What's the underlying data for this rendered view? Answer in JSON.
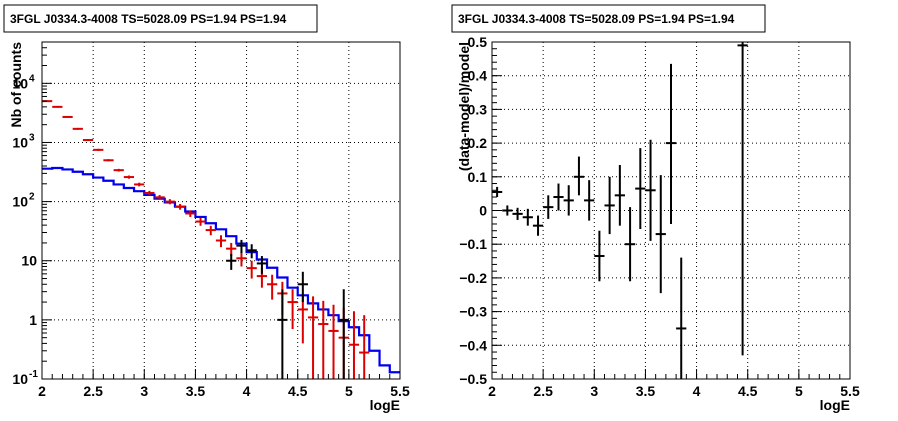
{
  "chart_data": [
    {
      "type": "line",
      "title": "3FGL J0334.3-4008 TS=5028.09 PS=1.94 PS=1.94",
      "xlabel": "logE",
      "ylabel": "Nb of counts",
      "xlim": [
        2,
        5.5
      ],
      "ylim": [
        0.1,
        50000
      ],
      "yscale": "log",
      "grid": true,
      "xticks": [
        "2",
        "2.5",
        "3",
        "3.5",
        "4",
        "4.5",
        "5",
        "5.5"
      ],
      "yticks": [
        {
          "v": 0.1,
          "label": "10",
          "sup": "-1"
        },
        {
          "v": 1,
          "label": "1",
          "sup": ""
        },
        {
          "v": 10,
          "label": "10",
          "sup": ""
        },
        {
          "v": 100,
          "label": "10",
          "sup": "2"
        },
        {
          "v": 1000,
          "label": "10",
          "sup": "3"
        },
        {
          "v": 10000,
          "label": "10",
          "sup": "4"
        }
      ],
      "series": [
        {
          "color": "#0000ee",
          "style": "step",
          "bins": [
            2.0,
            2.1,
            2.2,
            2.3,
            2.4,
            2.5,
            2.6,
            2.7,
            2.8,
            2.9,
            3.0,
            3.1,
            3.2,
            3.3,
            3.4,
            3.5,
            3.6,
            3.7,
            3.8,
            3.9,
            4.0,
            4.1,
            4.2,
            4.3,
            4.4,
            4.5,
            4.6,
            4.7,
            4.8,
            4.9,
            5.0,
            5.1,
            5.2,
            5.3,
            5.4,
            5.5
          ],
          "values": [
            360,
            370,
            350,
            320,
            290,
            255,
            225,
            195,
            170,
            150,
            130,
            112,
            97,
            82,
            68,
            55,
            43,
            34,
            26,
            19.5,
            14,
            10.5,
            7.6,
            5.2,
            3.5,
            2.6,
            1.9,
            1.5,
            1.2,
            0.95,
            0.75,
            0.55,
            0.3,
            0.17,
            0.13
          ]
        },
        {
          "color": "#dd0000",
          "style": "points",
          "points": [
            {
              "x": 2.05,
              "y": 5000,
              "lo": 4850,
              "hi": 5150
            },
            {
              "x": 2.15,
              "y": 4000,
              "lo": 3880,
              "hi": 4120
            },
            {
              "x": 2.25,
              "y": 2700,
              "lo": 2600,
              "hi": 2800
            },
            {
              "x": 2.35,
              "y": 1700,
              "lo": 1640,
              "hi": 1760
            },
            {
              "x": 2.45,
              "y": 1100,
              "lo": 1060,
              "hi": 1140
            },
            {
              "x": 2.55,
              "y": 750,
              "lo": 720,
              "hi": 780
            },
            {
              "x": 2.65,
              "y": 500,
              "lo": 478,
              "hi": 522
            },
            {
              "x": 2.75,
              "y": 340,
              "lo": 322,
              "hi": 358
            },
            {
              "x": 2.85,
              "y": 260,
              "lo": 244,
              "hi": 276
            },
            {
              "x": 2.95,
              "y": 195,
              "lo": 181,
              "hi": 209
            },
            {
              "x": 3.05,
              "y": 140,
              "lo": 128,
              "hi": 152
            },
            {
              "x": 3.15,
              "y": 118,
              "lo": 107,
              "hi": 129
            },
            {
              "x": 3.25,
              "y": 100,
              "lo": 90,
              "hi": 110
            },
            {
              "x": 3.35,
              "y": 82,
              "lo": 73,
              "hi": 91
            },
            {
              "x": 3.45,
              "y": 63,
              "lo": 55,
              "hi": 71
            },
            {
              "x": 3.55,
              "y": 46,
              "lo": 39,
              "hi": 53
            },
            {
              "x": 3.65,
              "y": 33,
              "lo": 27,
              "hi": 39
            },
            {
              "x": 3.75,
              "y": 22,
              "lo": 17,
              "hi": 27
            },
            {
              "x": 3.85,
              "y": 16,
              "lo": 12,
              "hi": 20
            },
            {
              "x": 3.95,
              "y": 11,
              "lo": 8,
              "hi": 14
            },
            {
              "x": 4.05,
              "y": 7.5,
              "lo": 5,
              "hi": 10
            },
            {
              "x": 4.15,
              "y": 5.5,
              "lo": 3.5,
              "hi": 7.5
            },
            {
              "x": 4.25,
              "y": 4.0,
              "lo": 2.2,
              "hi": 5.8
            },
            {
              "x": 4.35,
              "y": 2.8,
              "lo": 1.2,
              "hi": 4.4
            },
            {
              "x": 4.45,
              "y": 2.0,
              "lo": 0.7,
              "hi": 3.3
            },
            {
              "x": 4.55,
              "y": 1.5,
              "lo": 0.4,
              "hi": 2.8
            },
            {
              "x": 4.65,
              "y": 1.1,
              "lo": 0.1,
              "hi": 2.5
            },
            {
              "x": 4.75,
              "y": 0.85,
              "lo": 0.1,
              "hi": 2.1
            },
            {
              "x": 4.85,
              "y": 0.65,
              "lo": 0.1,
              "hi": 1.8
            },
            {
              "x": 4.95,
              "y": 0.5,
              "lo": 0.1,
              "hi": 1.6
            },
            {
              "x": 5.05,
              "y": 0.38,
              "lo": 0.1,
              "hi": 1.4
            },
            {
              "x": 5.15,
              "y": 0.28,
              "lo": 0.1,
              "hi": 1.2
            }
          ]
        },
        {
          "color": "#000000",
          "style": "points",
          "points": [
            {
              "x": 3.85,
              "y": 10,
              "lo": 7,
              "hi": 13
            },
            {
              "x": 3.95,
              "y": 18,
              "lo": 13.5,
              "hi": 22.5
            },
            {
              "x": 4.05,
              "y": 15,
              "lo": 11,
              "hi": 19
            },
            {
              "x": 4.15,
              "y": 9,
              "lo": 6,
              "hi": 12
            },
            {
              "x": 4.35,
              "y": 1,
              "lo": 0.1,
              "hi": 3.3
            },
            {
              "x": 4.55,
              "y": 4,
              "lo": 2,
              "hi": 6.5
            },
            {
              "x": 4.95,
              "y": 1,
              "lo": 0.1,
              "hi": 3.3
            }
          ]
        }
      ]
    },
    {
      "type": "scatter",
      "title": "3FGL J0334.3-4008 TS=5028.09 PS=1.94 PS=1.94",
      "xlabel": "logE",
      "ylabel": "(data-model)/model",
      "xlim": [
        2,
        5.5
      ],
      "ylim": [
        -0.5,
        0.5
      ],
      "grid": true,
      "xticks": [
        "2",
        "2.5",
        "3",
        "3.5",
        "4",
        "4.5",
        "5",
        "5.5"
      ],
      "yticks": [
        "−0.5",
        "−0.4",
        "−0.3",
        "−0.2",
        "−0.1",
        "0",
        "0.1",
        "0.2",
        "0.3",
        "0.4",
        "0.5"
      ],
      "series": [
        {
          "color": "#000000",
          "points": [
            {
              "x": 2.05,
              "y": 0.055,
              "lo": 0.04,
              "hi": 0.07
            },
            {
              "x": 2.15,
              "y": 0.0,
              "lo": -0.015,
              "hi": 0.015
            },
            {
              "x": 2.25,
              "y": -0.01,
              "lo": -0.028,
              "hi": 0.008
            },
            {
              "x": 2.35,
              "y": -0.02,
              "lo": -0.045,
              "hi": 0.005
            },
            {
              "x": 2.45,
              "y": -0.045,
              "lo": -0.075,
              "hi": -0.015
            },
            {
              "x": 2.55,
              "y": 0.01,
              "lo": -0.025,
              "hi": 0.045
            },
            {
              "x": 2.65,
              "y": 0.04,
              "lo": 0.0,
              "hi": 0.08
            },
            {
              "x": 2.75,
              "y": 0.03,
              "lo": -0.015,
              "hi": 0.075
            },
            {
              "x": 2.85,
              "y": 0.1,
              "lo": 0.045,
              "hi": 0.16
            },
            {
              "x": 2.95,
              "y": 0.03,
              "lo": -0.03,
              "hi": 0.09
            },
            {
              "x": 3.05,
              "y": -0.135,
              "lo": -0.21,
              "hi": -0.06
            },
            {
              "x": 3.15,
              "y": 0.015,
              "lo": -0.07,
              "hi": 0.1
            },
            {
              "x": 3.25,
              "y": 0.045,
              "lo": -0.045,
              "hi": 0.135
            },
            {
              "x": 3.35,
              "y": -0.1,
              "lo": -0.21,
              "hi": 0.01
            },
            {
              "x": 3.45,
              "y": 0.065,
              "lo": -0.055,
              "hi": 0.185
            },
            {
              "x": 3.55,
              "y": 0.06,
              "lo": -0.09,
              "hi": 0.21
            },
            {
              "x": 3.65,
              "y": -0.07,
              "lo": -0.245,
              "hi": 0.105
            },
            {
              "x": 3.75,
              "y": 0.2,
              "lo": -0.04,
              "hi": 0.435
            },
            {
              "x": 3.85,
              "y": -0.35,
              "lo": -0.5,
              "hi": -0.14
            },
            {
              "x": 4.45,
              "y": 0.49,
              "lo": -0.43,
              "hi": 0.5
            }
          ]
        }
      ]
    }
  ]
}
